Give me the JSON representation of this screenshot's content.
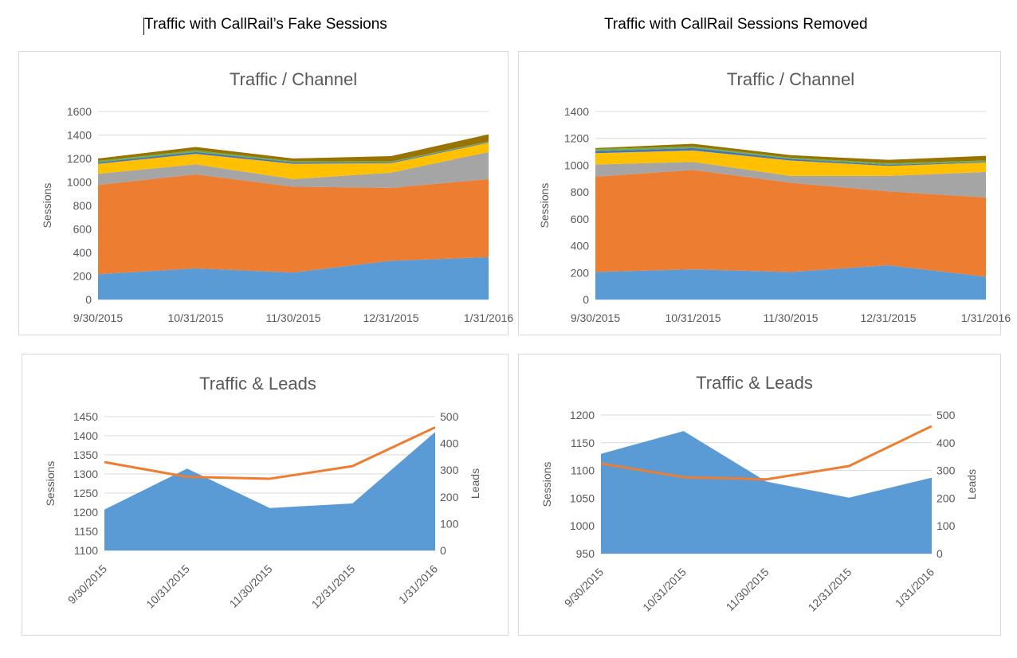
{
  "headings": {
    "left": "Traffic with CallRail’s Fake Sessions",
    "right": "Traffic with CallRail Sessions Removed"
  },
  "series_colors": [
    "#5b9bd5",
    "#ed7d31",
    "#a5a5a5",
    "#ffc000",
    "#4472c4",
    "#70ad47",
    "#997300"
  ],
  "line_color": "#ed7d31",
  "area_color": "#5b9bd5",
  "chart_data": [
    {
      "type": "area",
      "stacked": true,
      "title": "Traffic / Channel",
      "ylabel": "Sessions",
      "xlabel": "",
      "categories": [
        "9/30/2015",
        "10/31/2015",
        "11/30/2015",
        "12/31/2015",
        "1/31/2016"
      ],
      "ylim": [
        0,
        1600
      ],
      "yticks": [
        0,
        200,
        400,
        600,
        800,
        1000,
        1200,
        1400,
        1600
      ],
      "grid": true,
      "legend": "none",
      "series": [
        {
          "color": "#5b9bd5",
          "values": [
            215,
            265,
            230,
            330,
            360
          ]
        },
        {
          "color": "#ed7d31",
          "values": [
            760,
            800,
            730,
            620,
            665
          ]
        },
        {
          "color": "#a5a5a5",
          "values": [
            95,
            85,
            65,
            130,
            230
          ]
        },
        {
          "color": "#ffc000",
          "values": [
            85,
            90,
            130,
            80,
            80
          ]
        },
        {
          "color": "#4472c4",
          "values": [
            12,
            15,
            12,
            8,
            5
          ]
        },
        {
          "color": "#70ad47",
          "values": [
            13,
            15,
            10,
            7,
            6
          ]
        },
        {
          "color": "#997300",
          "values": [
            20,
            28,
            23,
            45,
            60
          ]
        }
      ]
    },
    {
      "type": "area",
      "stacked": true,
      "title": "Traffic / Channel",
      "ylabel": "Sessions",
      "xlabel": "",
      "categories": [
        "9/30/2015",
        "10/31/2015",
        "11/30/2015",
        "12/31/2015",
        "1/31/2016"
      ],
      "ylim": [
        0,
        1400
      ],
      "yticks": [
        0,
        200,
        400,
        600,
        800,
        1000,
        1200,
        1400
      ],
      "grid": true,
      "legend": "none",
      "series": [
        {
          "color": "#5b9bd5",
          "values": [
            205,
            225,
            205,
            255,
            170
          ]
        },
        {
          "color": "#ed7d31",
          "values": [
            710,
            740,
            665,
            550,
            590
          ]
        },
        {
          "color": "#a5a5a5",
          "values": [
            90,
            60,
            50,
            115,
            190
          ]
        },
        {
          "color": "#ffc000",
          "values": [
            85,
            85,
            115,
            75,
            70
          ]
        },
        {
          "color": "#4472c4",
          "values": [
            15,
            18,
            12,
            8,
            5
          ]
        },
        {
          "color": "#70ad47",
          "values": [
            15,
            12,
            10,
            12,
            10
          ]
        },
        {
          "color": "#997300",
          "values": [
            8,
            20,
            18,
            25,
            35
          ]
        }
      ]
    },
    {
      "type": "area+line",
      "title": "Traffic & Leads",
      "ylabel": "Sessions",
      "y2label": "Leads",
      "categories": [
        "9/30/2015",
        "10/31/2015",
        "11/30/2015",
        "12/31/2015",
        "1/31/2016"
      ],
      "ylim": [
        1100,
        1450
      ],
      "yticks": [
        1100,
        1150,
        1200,
        1250,
        1300,
        1350,
        1400,
        1450
      ],
      "y2lim": [
        0,
        500
      ],
      "y2ticks": [
        0,
        100,
        200,
        300,
        400,
        500
      ],
      "grid": true,
      "legend": "none",
      "series": [
        {
          "kind": "area",
          "axis": "left",
          "color": "#5b9bd5",
          "values": [
            1207,
            1314,
            1211,
            1223,
            1410
          ]
        },
        {
          "kind": "line",
          "axis": "right",
          "color": "#ed7d31",
          "values": [
            330,
            275,
            268,
            315,
            460
          ]
        }
      ]
    },
    {
      "type": "area+line",
      "title": "Traffic & Leads",
      "ylabel": "Sessions",
      "y2label": "Leads",
      "categories": [
        "9/30/2015",
        "10/31/2015",
        "11/30/2015",
        "12/31/2015",
        "1/31/2016"
      ],
      "ylim": [
        950,
        1200
      ],
      "yticks": [
        950,
        1000,
        1050,
        1100,
        1150,
        1200
      ],
      "y2lim": [
        0,
        500
      ],
      "y2ticks": [
        0,
        100,
        200,
        300,
        400,
        500
      ],
      "grid": true,
      "legend": "none",
      "series": [
        {
          "kind": "area",
          "axis": "left",
          "color": "#5b9bd5",
          "values": [
            1130,
            1171,
            1080,
            1051,
            1087
          ]
        },
        {
          "kind": "line",
          "axis": "right",
          "color": "#ed7d31",
          "values": [
            325,
            276,
            268,
            316,
            460
          ]
        }
      ]
    }
  ]
}
